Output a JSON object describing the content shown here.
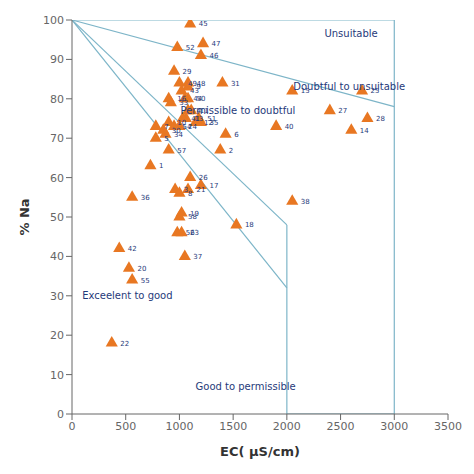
{
  "chart_data": {
    "type": "scatter",
    "xlabel": "EC( μS/cm)",
    "ylabel": "% Na",
    "xlim": [
      0,
      3500
    ],
    "ylim": [
      0,
      100
    ],
    "xticks": [
      0,
      500,
      1000,
      1500,
      2000,
      2500,
      3000,
      3500
    ],
    "yticks": [
      0,
      10,
      20,
      30,
      40,
      50,
      60,
      70,
      80,
      90,
      100
    ],
    "grid": false,
    "series": [
      {
        "type": "line",
        "color": "#7DB5C8",
        "x": [
          0,
          3000
        ],
        "values": [
          100,
          100
        ]
      },
      {
        "type": "line",
        "color": "#7DB5C8",
        "x": [
          3000,
          3000
        ],
        "values": [
          100,
          0
        ]
      },
      {
        "type": "line",
        "color": "#7DB5C8",
        "x": [
          2000,
          3000
        ],
        "values": [
          0,
          0
        ]
      },
      {
        "type": "line",
        "color": "#7DB5C8",
        "x": [
          2000,
          2000
        ],
        "values": [
          0,
          48
        ]
      },
      {
        "type": "line",
        "color": "#7DB5C8",
        "x": [
          0,
          3000
        ],
        "values": [
          100,
          78
        ]
      },
      {
        "type": "line",
        "color": "#7DB5C8",
        "x": [
          0,
          2000
        ],
        "values": [
          100,
          48
        ]
      },
      {
        "type": "line",
        "color": "#7DB5C8",
        "x": [
          0,
          2000
        ],
        "values": [
          100,
          32
        ]
      },
      {
        "type": "scatter",
        "color": "#E87722",
        "marker": "triangle",
        "x": [
          730,
          1380,
          960,
          1080,
          780,
          1430,
          780,
          1000,
          1080,
          900,
          1110,
          1150,
          1060,
          2600,
          2050,
          900,
          1200,
          1530,
          1020,
          530,
          1080,
          370,
          1020,
          1000,
          2700,
          1100,
          2400,
          2750,
          950,
          1400,
          920,
          1200,
          560,
          1050,
          2050,
          1900,
          1030,
          440,
          1020,
          1050,
          1100,
          1200,
          1220,
          1080,
          1000,
          1080,
          1180,
          980,
          950,
          560,
          980,
          900,
          1000,
          850,
          870
        ],
        "values": [
          63,
          67,
          57,
          77,
          70,
          71,
          73,
          56,
          83,
          74,
          77,
          74,
          75,
          72,
          82,
          80,
          58,
          48,
          51,
          37,
          57,
          18,
          46,
          73,
          82,
          60,
          77,
          75,
          87,
          84,
          79,
          74,
          55,
          40,
          54,
          73,
          75,
          42,
          82,
          80,
          99,
          91,
          94,
          84,
          84,
          80,
          75,
          93,
          73,
          34,
          46,
          67,
          50,
          72,
          71
        ],
        "point_labels": [
          "1",
          "2",
          "3",
          "4",
          "5",
          "6",
          "7",
          "8",
          "9",
          "10",
          "11",
          "12",
          "13",
          "14",
          "15",
          "16",
          "17",
          "18",
          "19",
          "20",
          "21",
          "22",
          "23",
          "24",
          "25",
          "26",
          "27",
          "28",
          "29",
          "31",
          "33",
          "35",
          "36",
          "37",
          "38",
          "40",
          "41",
          "42",
          "43",
          "44",
          "45",
          "46",
          "47",
          "48",
          "49",
          "50",
          "51",
          "52",
          "54",
          "55",
          "56",
          "57",
          "58",
          "30",
          "34"
        ]
      }
    ],
    "annotations": [
      {
        "text": "Unsuitable",
        "x": 2350,
        "y": 96.5,
        "color": "#1F3A7A"
      },
      {
        "text": "Doubtful to unsuitable",
        "x": 2060,
        "y": 83,
        "color": "#1F3A7A"
      },
      {
        "text": "Permissible to doubtful",
        "x": 1010,
        "y": 77,
        "color": "#1F3A7A"
      },
      {
        "text": "Exceelent to good",
        "x": 95,
        "y": 30,
        "color": "#1F3A7A"
      },
      {
        "text": "Good to permissible",
        "x": 1150,
        "y": 7,
        "color": "#1F3A7A"
      }
    ]
  }
}
